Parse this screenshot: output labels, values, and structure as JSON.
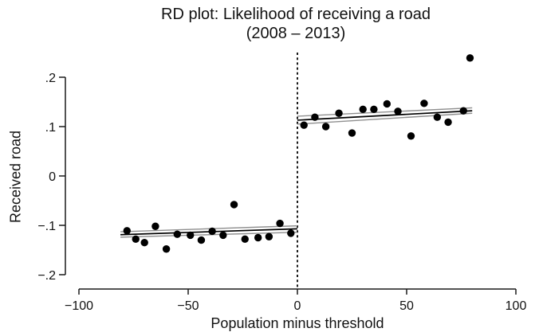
{
  "figure": {
    "title_line1": "RD plot: Likelihood of receiving a road",
    "title_line2": "(2008 – 2013)",
    "xlabel": "Population minus threshold",
    "ylabel": "Received road"
  },
  "style": {
    "point_color": "#000000",
    "fit_line_color": "#000000",
    "ci_line_color": "#8f8f8f",
    "axis_color": "#1a1a1a",
    "cutoff_color": "#000000",
    "text_color": "#111111",
    "background": "#ffffff"
  },
  "chart_data": {
    "type": "scatter",
    "title": "RD plot: Likelihood of receiving a road (2008 – 2013)",
    "xlabel": "Population minus threshold",
    "ylabel": "Received road",
    "xlim": [
      -100,
      100
    ],
    "ylim": [
      -0.2,
      0.2
    ],
    "grid": false,
    "legend": false,
    "xticks": {
      "values": [
        -100,
        -50,
        0,
        50,
        100
      ],
      "labels": [
        "−100",
        "−50",
        "0",
        "50",
        "100"
      ]
    },
    "yticks": {
      "values": [
        0.2,
        0.1,
        0,
        -0.1,
        -0.2
      ],
      "labels": [
        ".2",
        ".1",
        "0",
        "−.1",
        "−.2"
      ]
    },
    "cutoff": {
      "x": 0,
      "line_style": "dashed"
    },
    "marker": {
      "shape": "circle",
      "radius_px": 4.7
    },
    "rd_estimates": {
      "left_intercept_at_cutoff": -0.107,
      "right_intercept_at_cutoff": 0.113,
      "jump": 0.22
    },
    "series": [
      {
        "name": "binned-points-left",
        "role": "scatter",
        "points": [
          [
            -78,
            -0.111
          ],
          [
            -74,
            -0.128
          ],
          [
            -70,
            -0.135
          ],
          [
            -65,
            -0.102
          ],
          [
            -60,
            -0.148
          ],
          [
            -55,
            -0.118
          ],
          [
            -49,
            -0.12
          ],
          [
            -44,
            -0.13
          ],
          [
            -39,
            -0.112
          ],
          [
            -34,
            -0.12
          ],
          [
            -29,
            -0.058
          ],
          [
            -24,
            -0.128
          ],
          [
            -18,
            -0.125
          ],
          [
            -13,
            -0.123
          ],
          [
            -8,
            -0.096
          ],
          [
            -3,
            -0.116
          ]
        ]
      },
      {
        "name": "binned-points-right",
        "role": "scatter",
        "points": [
          [
            3,
            0.103
          ],
          [
            8,
            0.119
          ],
          [
            13,
            0.1
          ],
          [
            19,
            0.127
          ],
          [
            25,
            0.087
          ],
          [
            30,
            0.135
          ],
          [
            35,
            0.135
          ],
          [
            41,
            0.146
          ],
          [
            46,
            0.131
          ],
          [
            52,
            0.081
          ],
          [
            58,
            0.147
          ],
          [
            64,
            0.119
          ],
          [
            69,
            0.109
          ],
          [
            76,
            0.132
          ],
          [
            79,
            0.239
          ]
        ]
      },
      {
        "name": "ci-left-upper",
        "role": "ci-line",
        "points": [
          [
            -81,
            -0.113
          ],
          [
            0,
            -0.101
          ]
        ]
      },
      {
        "name": "ci-left-lower",
        "role": "ci-line",
        "points": [
          [
            -81,
            -0.124
          ],
          [
            0,
            -0.114
          ]
        ]
      },
      {
        "name": "fit-left",
        "role": "fit-line",
        "points": [
          [
            -81,
            -0.119
          ],
          [
            0,
            -0.107
          ]
        ]
      },
      {
        "name": "ci-right-upper",
        "role": "ci-line",
        "points": [
          [
            0,
            0.121
          ],
          [
            80,
            0.138
          ]
        ]
      },
      {
        "name": "ci-right-lower",
        "role": "ci-line",
        "points": [
          [
            0,
            0.105
          ],
          [
            80,
            0.127
          ]
        ]
      },
      {
        "name": "fit-right",
        "role": "fit-line",
        "points": [
          [
            0,
            0.113
          ],
          [
            80,
            0.132
          ]
        ]
      }
    ]
  }
}
